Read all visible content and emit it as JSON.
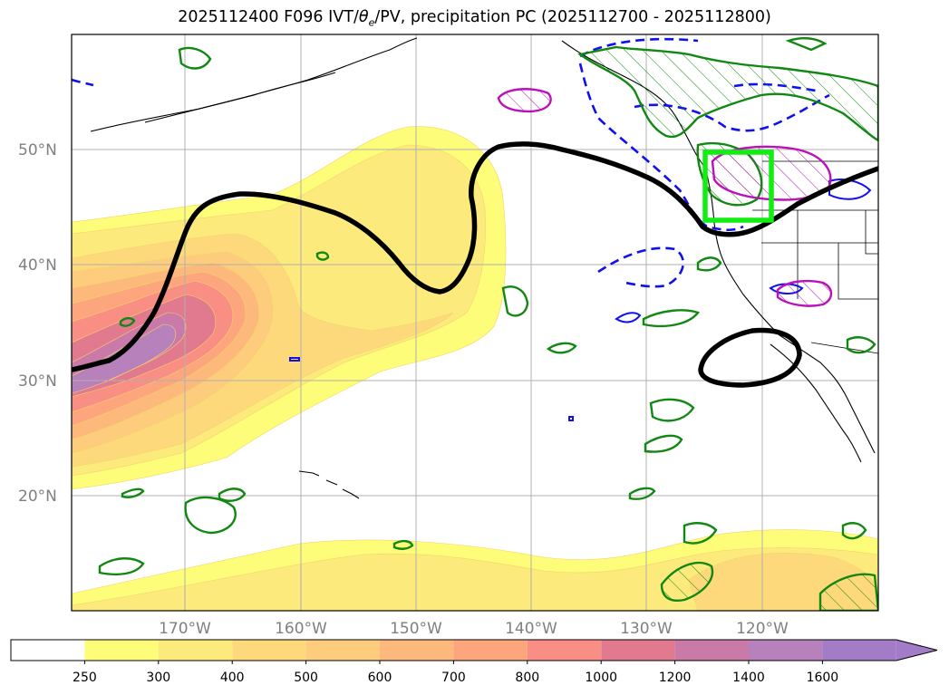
{
  "title": {
    "prefix": "2025112400 F096 IVT/",
    "theta": "θ",
    "theta_sub": "e",
    "suffix": "/PV, precipitation PC (2025112700 - 2025112800)"
  },
  "map": {
    "lat_labels": [
      "50°N",
      "40°N",
      "30°N",
      "20°N"
    ],
    "lon_labels": [
      "170°W",
      "160°W",
      "150°W",
      "140°W",
      "130°W",
      "120°W"
    ],
    "colors": {
      "pv_contour": "#000000",
      "theta_e_contour": "#1010ee",
      "precip_pc_contour": "#118811",
      "magenta_contour": "#bb11bb",
      "target_box": "#11ee11",
      "gridline": "#b0b0b0",
      "coastline": "#000000"
    }
  },
  "colorbar": {
    "levels": [
      "250",
      "300",
      "400",
      "500",
      "600",
      "700",
      "800",
      "1000",
      "1200",
      "1400",
      "1600"
    ],
    "colors": [
      "#ffffff",
      "#fdfd7a",
      "#fdea7c",
      "#fdd97c",
      "#fdcc7c",
      "#fdb87c",
      "#fda57c",
      "#f88e84",
      "#e17a8e",
      "#c97aa8",
      "#b781bc",
      "#a27cc6"
    ],
    "extend": "max"
  }
}
